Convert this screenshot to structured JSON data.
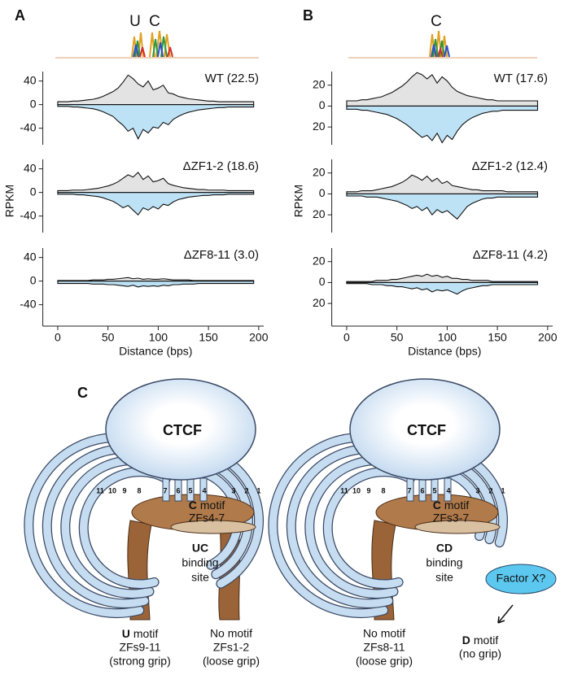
{
  "panel_labels": [
    "A",
    "B",
    "C"
  ],
  "logos": [
    [
      "U",
      "C"
    ],
    [
      "C"
    ]
  ],
  "chart_data": [
    {
      "type": "mirror-area",
      "title": "WT (22.5)",
      "x": [
        0,
        5,
        10,
        15,
        20,
        25,
        30,
        35,
        40,
        45,
        50,
        55,
        60,
        65,
        70,
        75,
        80,
        85,
        90,
        95,
        100,
        105,
        110,
        115,
        120,
        125,
        130,
        135,
        140,
        145,
        150,
        155,
        160,
        165,
        170,
        175,
        180,
        185,
        190,
        195
      ],
      "series": [
        {
          "color": "#e3e3e3",
          "values": [
            5,
            5,
            5,
            6,
            6,
            7,
            8,
            9,
            11,
            14,
            18,
            22,
            28,
            38,
            50,
            44,
            35,
            30,
            40,
            25,
            28,
            33,
            20,
            18,
            14,
            12,
            10,
            9,
            8,
            7,
            6,
            6,
            5,
            5,
            5,
            5,
            5,
            5,
            5,
            5
          ]
        },
        {
          "color": "#bde2f6",
          "values": [
            -3,
            -3,
            -3,
            -4,
            -4,
            -5,
            -6,
            -7,
            -9,
            -12,
            -16,
            -20,
            -28,
            -35,
            -45,
            -40,
            -58,
            -42,
            -48,
            -38,
            -40,
            -30,
            -34,
            -25,
            -20,
            -16,
            -13,
            -11,
            -9,
            -8,
            -7,
            -6,
            -5,
            -5,
            -4,
            -4,
            -4,
            -4,
            -4,
            -4
          ]
        }
      ],
      "xlim": [
        -10,
        205
      ],
      "ylim": [
        -68,
        56
      ],
      "yticks": [
        40,
        0,
        -40
      ]
    },
    {
      "type": "mirror-area",
      "title": "ΔZF1-2 (18.6)",
      "ylabel": "RPKM",
      "x": [
        0,
        5,
        10,
        15,
        20,
        25,
        30,
        35,
        40,
        45,
        50,
        55,
        60,
        65,
        70,
        75,
        80,
        85,
        90,
        95,
        100,
        105,
        110,
        115,
        120,
        125,
        130,
        135,
        140,
        145,
        150,
        155,
        160,
        165,
        170,
        175,
        180,
        185,
        190,
        195
      ],
      "series": [
        {
          "color": "#e3e3e3",
          "values": [
            3,
            3,
            3,
            4,
            4,
            4,
            5,
            6,
            7,
            9,
            11,
            14,
            18,
            24,
            30,
            26,
            34,
            22,
            28,
            18,
            20,
            24,
            15,
            12,
            10,
            8,
            7,
            6,
            5,
            5,
            4,
            4,
            4,
            4,
            3,
            3,
            3,
            3,
            3,
            3
          ]
        },
        {
          "color": "#bde2f6",
          "values": [
            -3,
            -3,
            -3,
            -3,
            -4,
            -4,
            -5,
            -6,
            -7,
            -9,
            -12,
            -15,
            -20,
            -26,
            -22,
            -30,
            -38,
            -26,
            -30,
            -24,
            -28,
            -20,
            -22,
            -16,
            -12,
            -10,
            -8,
            -7,
            -6,
            -5,
            -5,
            -4,
            -4,
            -4,
            -3,
            -3,
            -3,
            -3,
            -3,
            -3
          ]
        }
      ],
      "xlim": [
        -10,
        205
      ],
      "ylim": [
        -68,
        56
      ],
      "yticks": [
        40,
        0,
        -40
      ]
    },
    {
      "type": "mirror-area",
      "title": "ΔZF8-11 (3.0)",
      "xlabel": "Distance (bps)",
      "x": [
        0,
        5,
        10,
        15,
        20,
        25,
        30,
        35,
        40,
        45,
        50,
        55,
        60,
        65,
        70,
        75,
        80,
        85,
        90,
        95,
        100,
        105,
        110,
        115,
        120,
        125,
        130,
        135,
        140,
        145,
        150,
        155,
        160,
        165,
        170,
        175,
        180,
        185,
        190,
        195
      ],
      "series": [
        {
          "color": "#e3e3e3",
          "values": [
            1,
            1,
            1,
            1,
            1,
            1,
            1,
            2,
            2,
            2,
            3,
            3,
            4,
            5,
            6,
            4,
            5,
            3,
            4,
            3,
            3,
            4,
            3,
            2,
            2,
            2,
            2,
            1,
            1,
            1,
            1,
            1,
            1,
            1,
            1,
            1,
            1,
            1,
            1,
            1
          ]
        },
        {
          "color": "#bde2f6",
          "values": [
            -4,
            -4,
            -4,
            -4,
            -4,
            -4,
            -4,
            -5,
            -5,
            -5,
            -6,
            -6,
            -7,
            -8,
            -9,
            -7,
            -10,
            -8,
            -9,
            -8,
            -9,
            -7,
            -8,
            -6,
            -6,
            -5,
            -5,
            -5,
            -4,
            -4,
            -4,
            -4,
            -4,
            -4,
            -4,
            -4,
            -4,
            -4,
            -4,
            -4
          ]
        }
      ],
      "xlim": [
        -10,
        205
      ],
      "ylim": [
        -68,
        56
      ],
      "yticks": [
        40,
        0,
        -40
      ],
      "xticks": [
        0,
        50,
        100,
        150,
        200
      ]
    },
    {
      "type": "mirror-area",
      "title": "WT (17.6)",
      "x": [
        0,
        5,
        10,
        15,
        20,
        25,
        30,
        35,
        40,
        45,
        50,
        55,
        60,
        65,
        70,
        75,
        80,
        85,
        90,
        95,
        100,
        105,
        110,
        115,
        120,
        125,
        130,
        135,
        140,
        145,
        150,
        155,
        160,
        165,
        170,
        175,
        180,
        185,
        190
      ],
      "series": [
        {
          "color": "#e3e3e3",
          "values": [
            5,
            5,
            5,
            6,
            6,
            7,
            8,
            9,
            11,
            13,
            16,
            19,
            23,
            28,
            32,
            30,
            26,
            30,
            22,
            28,
            24,
            18,
            14,
            12,
            10,
            9,
            8,
            7,
            6,
            6,
            5,
            5,
            5,
            5,
            5,
            5,
            5,
            5,
            5
          ]
        },
        {
          "color": "#bde2f6",
          "values": [
            -3,
            -3,
            -3,
            -4,
            -4,
            -5,
            -6,
            -7,
            -8,
            -10,
            -12,
            -15,
            -18,
            -22,
            -26,
            -30,
            -28,
            -33,
            -26,
            -35,
            -28,
            -32,
            -24,
            -18,
            -14,
            -11,
            -9,
            -7,
            -6,
            -5,
            -5,
            -4,
            -4,
            -4,
            -4,
            -4,
            -4,
            -4,
            -4
          ]
        }
      ],
      "xlim": [
        -10,
        205
      ],
      "ylim": [
        -37,
        33
      ],
      "yticks": [
        20,
        0,
        {
          "value": -20,
          "label": "20"
        }
      ]
    },
    {
      "type": "mirror-area",
      "title": "ΔZF1-2 (12.4)",
      "ylabel": "RPKM",
      "x": [
        0,
        5,
        10,
        15,
        20,
        25,
        30,
        35,
        40,
        45,
        50,
        55,
        60,
        65,
        70,
        75,
        80,
        85,
        90,
        95,
        100,
        105,
        110,
        115,
        120,
        125,
        130,
        135,
        140,
        145,
        150,
        155,
        160,
        165,
        170,
        175,
        180,
        185,
        190
      ],
      "series": [
        {
          "color": "#e3e3e3",
          "values": [
            2,
            2,
            2,
            3,
            3,
            3,
            4,
            5,
            6,
            7,
            9,
            11,
            14,
            18,
            16,
            13,
            17,
            12,
            15,
            10,
            12,
            8,
            7,
            6,
            5,
            4,
            4,
            3,
            3,
            3,
            3,
            3,
            2,
            2,
            2,
            2,
            2,
            2,
            2
          ]
        },
        {
          "color": "#bde2f6",
          "values": [
            -2,
            -2,
            -2,
            -2,
            -3,
            -3,
            -3,
            -4,
            -5,
            -6,
            -7,
            -9,
            -11,
            -14,
            -12,
            -16,
            -13,
            -20,
            -15,
            -18,
            -16,
            -20,
            -24,
            -18,
            -12,
            -9,
            -7,
            -5,
            -4,
            -4,
            -3,
            -3,
            -3,
            -3,
            -3,
            -3,
            -3,
            -3,
            -3
          ]
        }
      ],
      "xlim": [
        -10,
        205
      ],
      "ylim": [
        -37,
        33
      ],
      "yticks": [
        20,
        0,
        {
          "value": -20,
          "label": "20"
        }
      ]
    },
    {
      "type": "mirror-area",
      "title": "ΔZF8-11 (4.2)",
      "xlabel": "Distance (bps)",
      "x": [
        0,
        5,
        10,
        15,
        20,
        25,
        30,
        35,
        40,
        45,
        50,
        55,
        60,
        65,
        70,
        75,
        80,
        85,
        90,
        95,
        100,
        105,
        110,
        115,
        120,
        125,
        130,
        135,
        140,
        145,
        150,
        155,
        160,
        165,
        170,
        175,
        180,
        185,
        190
      ],
      "series": [
        {
          "color": "#e3e3e3",
          "values": [
            1,
            1,
            1,
            1,
            1,
            1,
            2,
            2,
            2,
            3,
            3,
            4,
            5,
            6,
            7,
            6,
            8,
            6,
            7,
            5,
            6,
            4,
            4,
            3,
            3,
            2,
            2,
            2,
            2,
            1,
            1,
            1,
            1,
            1,
            1,
            1,
            1,
            1,
            1
          ]
        },
        {
          "color": "#bde2f6",
          "values": [
            -1,
            -1,
            -1,
            -1,
            -1,
            -2,
            -2,
            -2,
            -3,
            -3,
            -4,
            -4,
            -5,
            -6,
            -5,
            -7,
            -6,
            -9,
            -7,
            -8,
            -7,
            -9,
            -11,
            -8,
            -6,
            -5,
            -4,
            -3,
            -3,
            -2,
            -2,
            -2,
            -2,
            -2,
            -2,
            -2,
            -2,
            -2,
            -2
          ]
        }
      ],
      "xlim": [
        -10,
        205
      ],
      "ylim": [
        -37,
        33
      ],
      "yticks": [
        20,
        0,
        {
          "value": -20,
          "label": "20"
        }
      ],
      "xticks": [
        0,
        50,
        100,
        150,
        200
      ]
    }
  ],
  "diagram": {
    "finger_numbers": [
      "11",
      "10",
      "9",
      "8",
      "7",
      "6",
      "5",
      "4",
      "3",
      "2",
      "1"
    ],
    "left": {
      "protein": "CTCF",
      "center_motif": {
        "bold": "C",
        "text": "motif"
      },
      "center_zfs": "ZFs4-7",
      "site": {
        "bold": "UC",
        "lines": [
          "binding",
          "site"
        ]
      },
      "left_leg": {
        "motif": {
          "bold": "U",
          "text": "motif"
        },
        "zfs": "ZFs9-11",
        "grip": "(strong grip)"
      },
      "right_leg": {
        "motif": "No motif",
        "zfs": "ZFs1-2",
        "grip": "(loose grip)"
      }
    },
    "right": {
      "protein": "CTCF",
      "center_motif": {
        "bold": "C",
        "text": "motif"
      },
      "center_zfs": "ZFs3-7",
      "site": {
        "bold": "CD",
        "lines": [
          "binding",
          "site"
        ]
      },
      "left_leg": {
        "motif": "No motif",
        "zfs": "ZFs8-11",
        "grip": "(loose grip)"
      },
      "factor": "Factor X?",
      "d_motif": {
        "bold": "D",
        "text": "motif"
      },
      "d_grip": "(no grip)"
    }
  }
}
